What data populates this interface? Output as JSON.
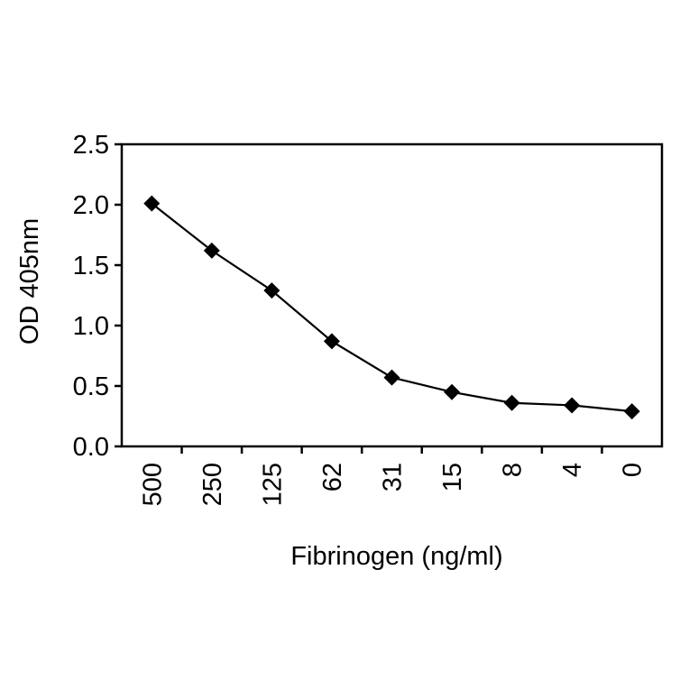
{
  "chart_data": {
    "type": "line",
    "title": "",
    "xlabel": "Fibrinogen (ng/ml)",
    "ylabel": "OD 405nm",
    "categories": [
      "500",
      "250",
      "125",
      "62",
      "31",
      "15",
      "8",
      "4",
      "0"
    ],
    "series": [
      {
        "values": [
          2.01,
          1.62,
          1.29,
          0.87,
          0.57,
          0.45,
          0.36,
          0.34,
          0.29
        ],
        "marker": "diamond",
        "color": "#000000"
      }
    ],
    "ylim": [
      0,
      2.5
    ],
    "yticks": [
      "0.0",
      "0.5",
      "1.0",
      "1.5",
      "2.0",
      "2.5"
    ],
    "grid": false,
    "legend": "none"
  }
}
